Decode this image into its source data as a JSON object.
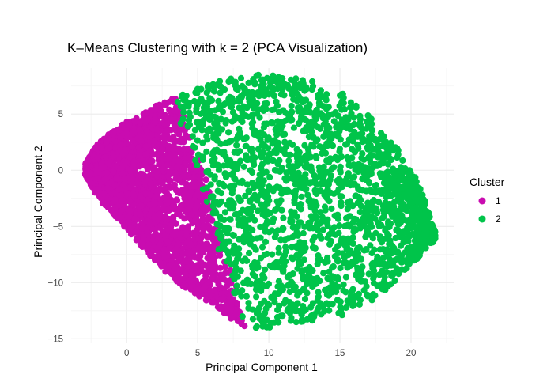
{
  "chart_data": {
    "type": "scatter",
    "title": "K–Means Clustering with k = 2 (PCA Visualization)",
    "xlabel": "Principal Component 1",
    "ylabel": "Principal Component 2",
    "xlim": [
      -3.9,
      23
    ],
    "ylim": [
      -15.4,
      9.1
    ],
    "x_ticks": [
      0,
      5,
      10,
      15,
      20
    ],
    "y_ticks": [
      -15,
      -10,
      -5,
      0,
      5
    ],
    "grid": true,
    "legend": {
      "title": "Cluster",
      "position": "right"
    },
    "series": [
      {
        "name": "1",
        "color": "#c90cb0",
        "region": {
          "top": [
            [
              -2.9,
              0.6
            ],
            [
              -2.0,
              2.5
            ],
            [
              -0.5,
              4.0
            ],
            [
              1.0,
              5.0
            ],
            [
              2.5,
              6.1
            ],
            [
              3.5,
              6.5
            ]
          ],
          "bottom": [
            [
              -2.9,
              -0.4
            ],
            [
              -2.0,
              -2.5
            ],
            [
              -0.5,
              -4.5
            ],
            [
              1.5,
              -7.5
            ],
            [
              3.5,
              -10.0
            ],
            [
              5.5,
              -11.5
            ],
            [
              7.5,
              -13.5
            ],
            [
              8.7,
              -14.1
            ]
          ],
          "boundary": [
            [
              3.5,
              6.5
            ],
            [
              4.0,
              4.5
            ],
            [
              4.5,
              2.5
            ],
            [
              5.0,
              0.5
            ],
            [
              5.5,
              -1.5
            ],
            [
              6.0,
              -4.0
            ],
            [
              6.5,
              -6.5
            ],
            [
              7.0,
              -8.5
            ],
            [
              7.5,
              -10.5
            ],
            [
              8.0,
              -12.5
            ],
            [
              8.7,
              -14.1
            ]
          ]
        }
      },
      {
        "name": "2",
        "color": "#00c44a",
        "region": {
          "top": [
            [
              3.5,
              6.5
            ],
            [
              5.0,
              7.4
            ],
            [
              7.0,
              8.1
            ],
            [
              9.0,
              8.5
            ],
            [
              11.0,
              8.5
            ],
            [
              13.0,
              8.0
            ],
            [
              15.0,
              7.0
            ],
            [
              17.0,
              5.0
            ],
            [
              19.0,
              2.0
            ],
            [
              20.5,
              -1.0
            ],
            [
              21.7,
              -5.5
            ]
          ],
          "bottom": [
            [
              8.7,
              -14.1
            ],
            [
              10.5,
              -14.0
            ],
            [
              12.0,
              -14.2
            ],
            [
              14.0,
              -13.5
            ],
            [
              16.0,
              -12.5
            ],
            [
              18.0,
              -11.0
            ],
            [
              20.0,
              -8.5
            ],
            [
              21.7,
              -6.2
            ]
          ],
          "boundary": [
            [
              3.5,
              6.5
            ],
            [
              4.0,
              4.5
            ],
            [
              4.5,
              2.5
            ],
            [
              5.0,
              0.5
            ],
            [
              5.5,
              -1.5
            ],
            [
              6.0,
              -4.0
            ],
            [
              6.5,
              -6.5
            ],
            [
              7.0,
              -8.5
            ],
            [
              7.5,
              -10.5
            ],
            [
              8.0,
              -12.5
            ],
            [
              8.7,
              -14.1
            ]
          ]
        }
      }
    ]
  }
}
